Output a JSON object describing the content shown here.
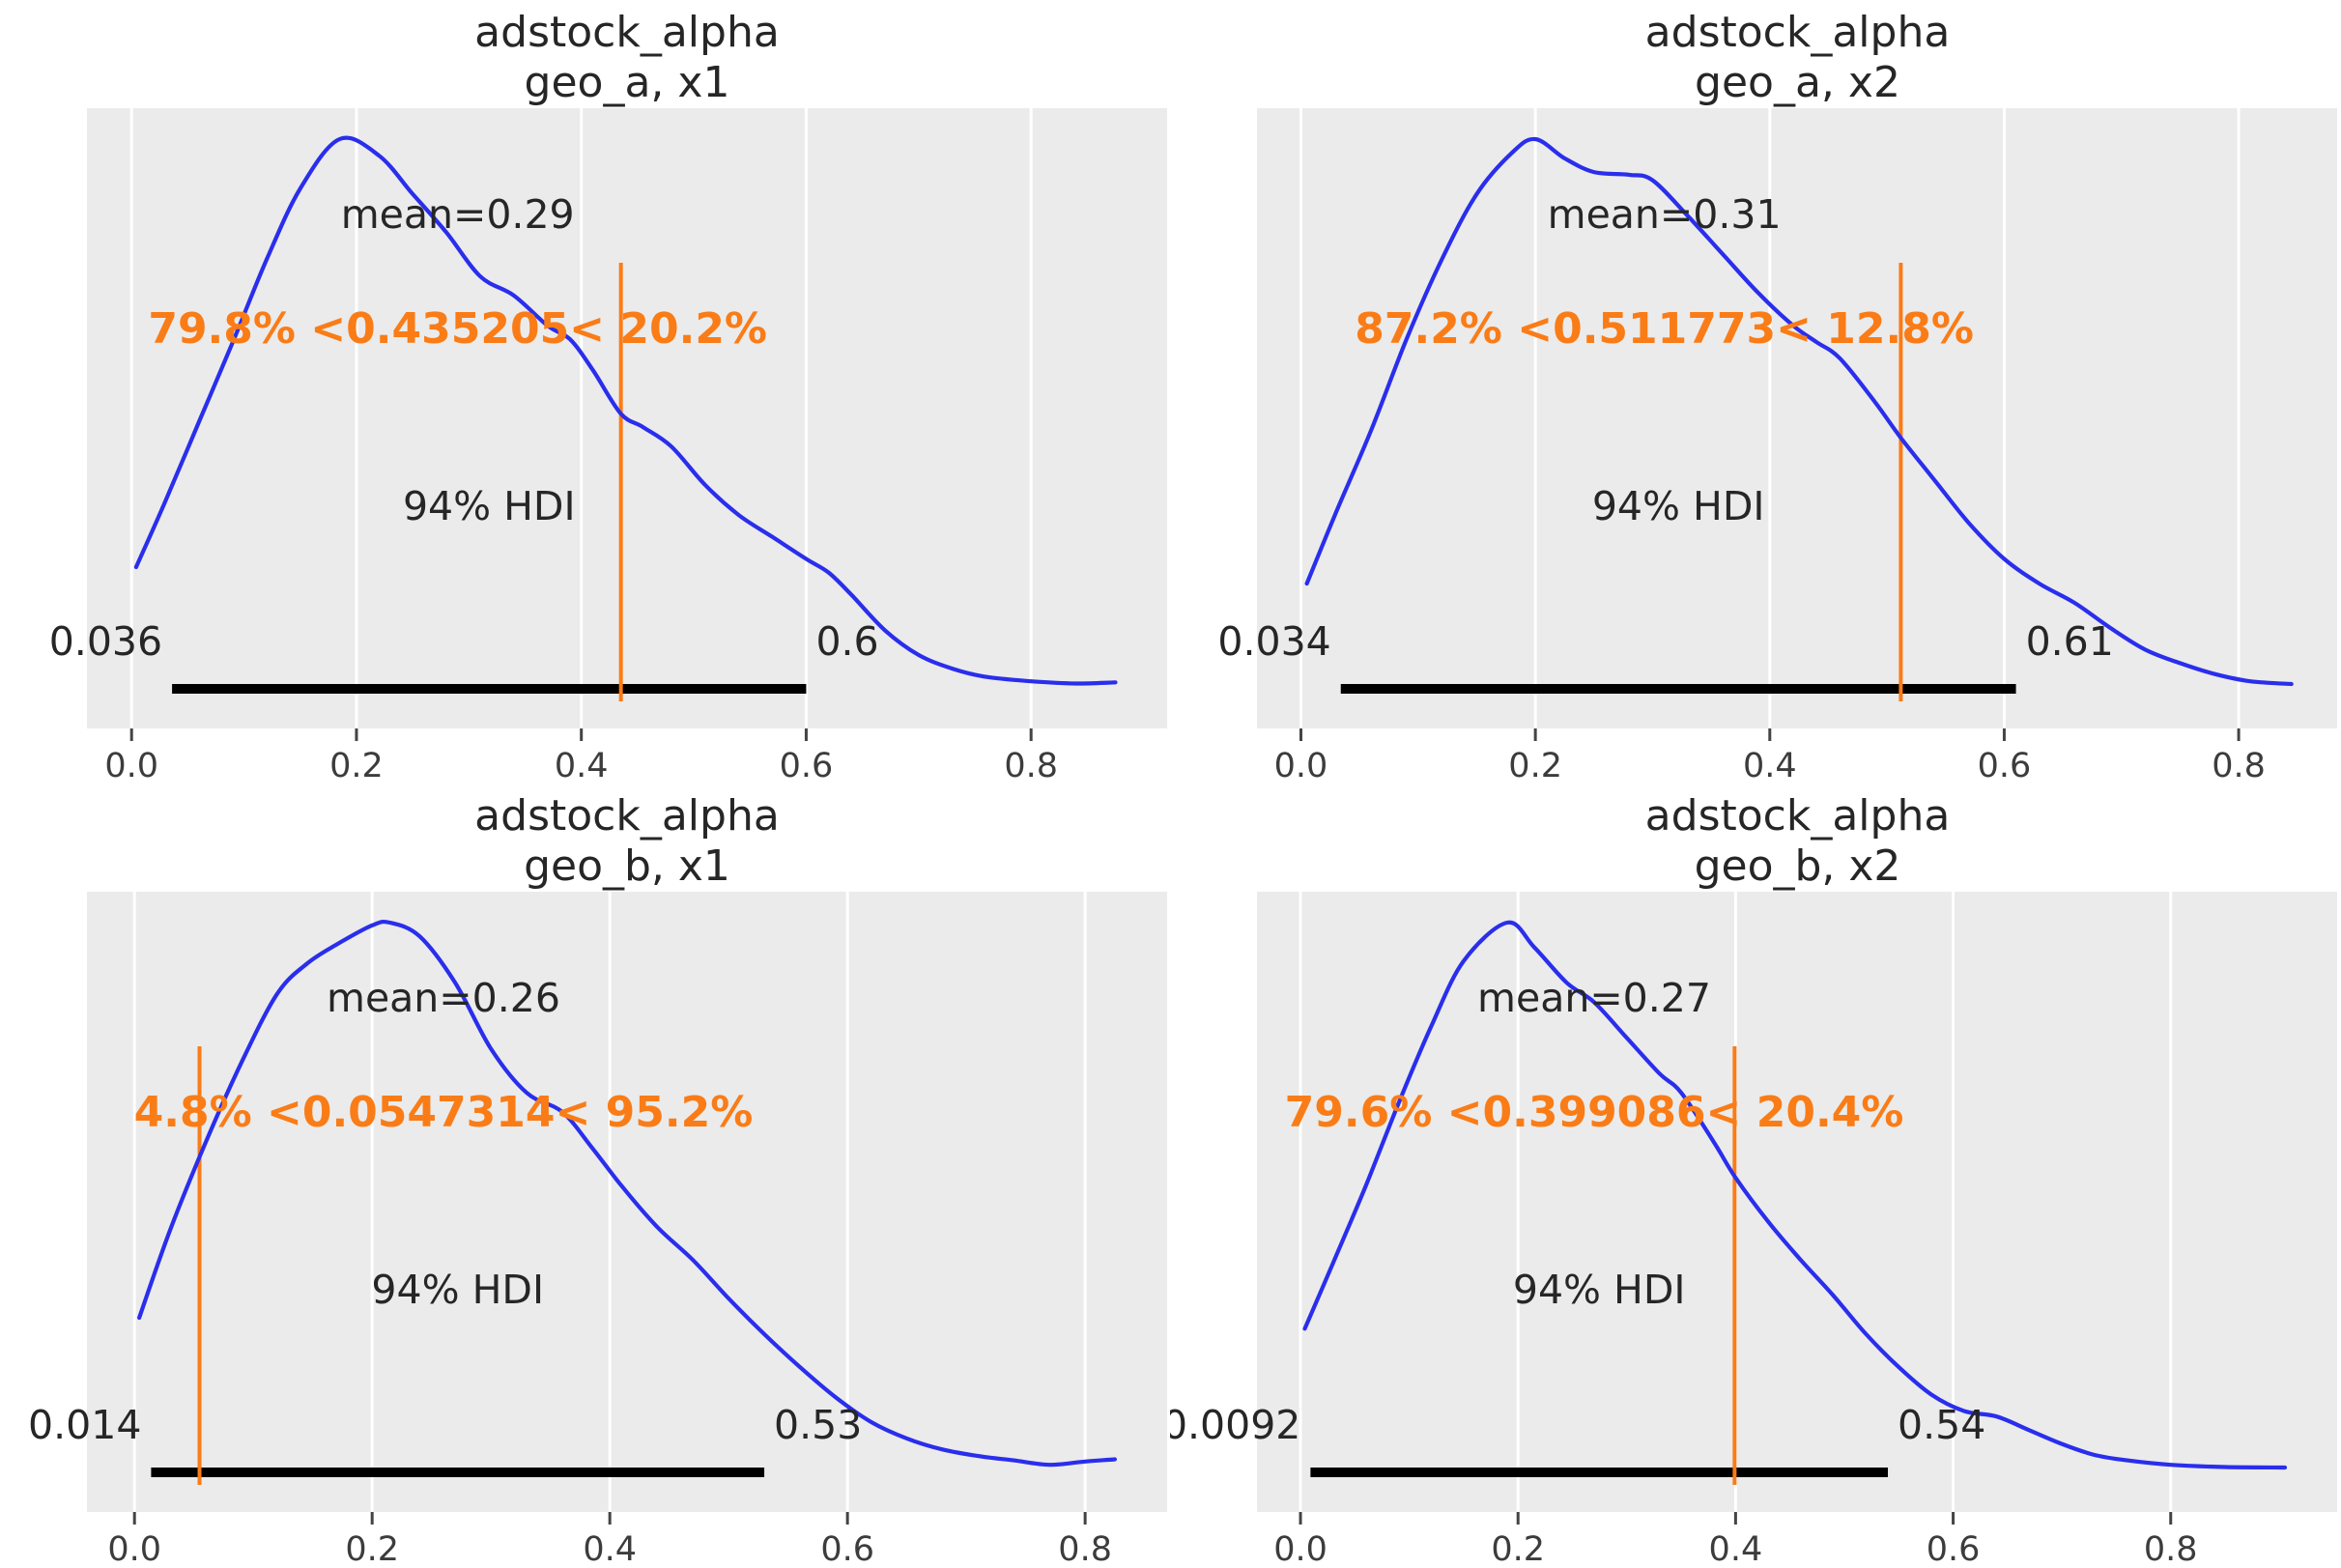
{
  "figure": {
    "background": "#ffffff",
    "panel_background": "#ebebeb",
    "gridline_color": "#ffffff",
    "curve_color": "#2a2eec",
    "ref_color": "#fa7c17",
    "hdi_bar_color": "#000000",
    "text_color": "#262626",
    "tick_color": "#3c3c3c",
    "grid": "vertical-only"
  },
  "chart_data": [
    {
      "type": "kde",
      "title": "adstock_alpha",
      "subtitle": "geo_a, x1",
      "mean": 0.29,
      "mean_label": "mean=0.29",
      "ref_val": 0.435205,
      "ref_label": "79.8% <0.435205< 20.2%",
      "pct_below_ref": 79.8,
      "pct_above_ref": 20.2,
      "hdi_label": "94% HDI",
      "hdi_lower": 0.036,
      "hdi_upper": 0.6,
      "hdi_lower_label": "0.036",
      "hdi_upper_label": "0.6",
      "xlim": [
        -0.0397,
        0.921
      ],
      "xticks": [
        0,
        0.2,
        0.4,
        0.6,
        0.8
      ],
      "xtick_labels": [
        "0.0",
        "0.2",
        "0.4",
        "0.6",
        "0.8"
      ],
      "kde_x": [
        0.004,
        0.03,
        0.06,
        0.09,
        0.12,
        0.15,
        0.185,
        0.22,
        0.25,
        0.28,
        0.31,
        0.34,
        0.37,
        0.39,
        0.41,
        0.435,
        0.455,
        0.48,
        0.51,
        0.54,
        0.57,
        0.6,
        0.62,
        0.64,
        0.67,
        0.7,
        0.73,
        0.76,
        0.8,
        0.84,
        0.875
      ],
      "kde_density": [
        0.22,
        0.34,
        0.485,
        0.63,
        0.78,
        0.91,
        1.0,
        0.97,
        0.9,
        0.83,
        0.75,
        0.715,
        0.66,
        0.635,
        0.58,
        0.5,
        0.475,
        0.44,
        0.37,
        0.315,
        0.275,
        0.235,
        0.21,
        0.17,
        0.105,
        0.06,
        0.035,
        0.02,
        0.012,
        0.008,
        0.01
      ]
    },
    {
      "type": "kde",
      "title": "adstock_alpha",
      "subtitle": "geo_a, x2",
      "mean": 0.31,
      "mean_label": "mean=0.31",
      "ref_val": 0.511773,
      "ref_label": "87.2% <0.511773< 12.8%",
      "pct_below_ref": 87.2,
      "pct_above_ref": 12.8,
      "hdi_label": "94% HDI",
      "hdi_lower": 0.034,
      "hdi_upper": 0.61,
      "hdi_lower_label": "0.034",
      "hdi_upper_label": "0.61",
      "xlim": [
        -0.0375,
        0.884
      ],
      "xticks": [
        0,
        0.2,
        0.4,
        0.6,
        0.8
      ],
      "xtick_labels": [
        "0.0",
        "0.2",
        "0.4",
        "0.6",
        "0.8"
      ],
      "kde_x": [
        0.005,
        0.03,
        0.06,
        0.09,
        0.12,
        0.15,
        0.18,
        0.2,
        0.225,
        0.25,
        0.28,
        0.3,
        0.33,
        0.36,
        0.39,
        0.42,
        0.44,
        0.46,
        0.49,
        0.512,
        0.54,
        0.57,
        0.6,
        0.63,
        0.66,
        0.69,
        0.72,
        0.75,
        0.78,
        0.81,
        0.845
      ],
      "kde_density": [
        0.19,
        0.32,
        0.47,
        0.635,
        0.78,
        0.9,
        0.975,
        1.0,
        0.965,
        0.94,
        0.935,
        0.925,
        0.86,
        0.79,
        0.72,
        0.66,
        0.63,
        0.6,
        0.52,
        0.455,
        0.38,
        0.3,
        0.235,
        0.19,
        0.155,
        0.11,
        0.07,
        0.045,
        0.025,
        0.012,
        0.007
      ]
    },
    {
      "type": "kde",
      "title": "adstock_alpha",
      "subtitle": "geo_b, x1",
      "mean": 0.26,
      "mean_label": "mean=0.26",
      "ref_val": 0.0547314,
      "ref_label": "4.8% <0.0547314< 95.2%",
      "pct_below_ref": 4.8,
      "pct_above_ref": 95.2,
      "hdi_label": "94% HDI",
      "hdi_lower": 0.014,
      "hdi_upper": 0.53,
      "hdi_lower_label": "0.014",
      "hdi_upper_label": "0.53",
      "xlim": [
        -0.04,
        0.869
      ],
      "xticks": [
        0,
        0.2,
        0.4,
        0.6,
        0.8
      ],
      "xtick_labels": [
        "0.0",
        "0.2",
        "0.4",
        "0.6",
        "0.8"
      ],
      "kde_x": [
        0.004,
        0.03,
        0.06,
        0.09,
        0.12,
        0.145,
        0.17,
        0.2,
        0.215,
        0.24,
        0.27,
        0.3,
        0.33,
        0.36,
        0.385,
        0.41,
        0.44,
        0.47,
        0.5,
        0.53,
        0.56,
        0.59,
        0.62,
        0.65,
        0.68,
        0.71,
        0.74,
        0.77,
        0.8,
        0.825
      ],
      "kde_density": [
        0.28,
        0.44,
        0.6,
        0.745,
        0.87,
        0.925,
        0.96,
        0.995,
        1.0,
        0.975,
        0.89,
        0.77,
        0.69,
        0.655,
        0.59,
        0.52,
        0.445,
        0.385,
        0.315,
        0.25,
        0.19,
        0.135,
        0.09,
        0.06,
        0.04,
        0.028,
        0.02,
        0.012,
        0.018,
        0.022
      ]
    },
    {
      "type": "kde",
      "title": "adstock_alpha",
      "subtitle": "geo_b, x2",
      "mean": 0.27,
      "mean_label": "mean=0.27",
      "ref_val": 0.399086,
      "ref_label": "79.6% <0.399086< 20.4%",
      "pct_below_ref": 79.6,
      "pct_above_ref": 20.4,
      "hdi_label": "94% HDI",
      "hdi_lower": 0.0092,
      "hdi_upper": 0.54,
      "hdi_lower_label": "0.0092",
      "hdi_upper_label": "0.54",
      "xlim": [
        -0.04,
        0.953
      ],
      "xticks": [
        0,
        0.2,
        0.4,
        0.6,
        0.8
      ],
      "xtick_labels": [
        "0.0",
        "0.2",
        "0.4",
        "0.6",
        "0.8"
      ],
      "kde_x": [
        0.004,
        0.03,
        0.06,
        0.09,
        0.12,
        0.15,
        0.19,
        0.215,
        0.245,
        0.27,
        0.3,
        0.33,
        0.35,
        0.38,
        0.4,
        0.43,
        0.46,
        0.49,
        0.52,
        0.55,
        0.58,
        0.61,
        0.64,
        0.67,
        0.7,
        0.73,
        0.76,
        0.8,
        0.85,
        0.905
      ],
      "kde_density": [
        0.26,
        0.38,
        0.52,
        0.67,
        0.81,
        0.93,
        1.0,
        0.955,
        0.89,
        0.855,
        0.79,
        0.725,
        0.69,
        0.6,
        0.535,
        0.455,
        0.385,
        0.32,
        0.25,
        0.19,
        0.14,
        0.11,
        0.1,
        0.075,
        0.05,
        0.03,
        0.02,
        0.012,
        0.008,
        0.007
      ]
    }
  ]
}
